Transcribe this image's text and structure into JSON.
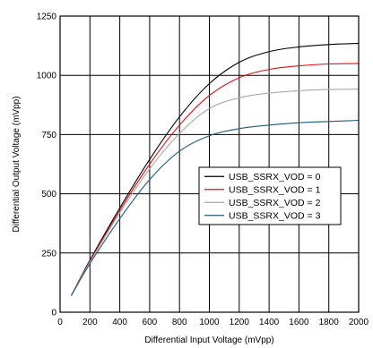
{
  "chart_data": {
    "type": "line",
    "title": "",
    "xlabel": "Differential Input Voltage (mVpp)",
    "ylabel": "Differential Output Voltage (mVpp)",
    "xlim": [
      0,
      2000
    ],
    "ylim": [
      0,
      1250
    ],
    "xticks": [
      0,
      200,
      400,
      600,
      800,
      1000,
      1200,
      1400,
      1600,
      1800,
      2000
    ],
    "yticks": [
      0,
      250,
      500,
      750,
      1000,
      1250
    ],
    "grid": true,
    "legend_position": "center-right",
    "series": [
      {
        "name": "USB_SSRX_VOD = 0",
        "color": "#000000",
        "x": [
          75,
          200,
          400,
          600,
          800,
          1000,
          1200,
          1400,
          1600,
          1800,
          2000
        ],
        "y": [
          70,
          220,
          440,
          645,
          825,
          965,
          1055,
          1100,
          1120,
          1130,
          1135
        ]
      },
      {
        "name": "USB_SSRX_VOD = 1",
        "color": "#e01010",
        "x": [
          75,
          200,
          400,
          600,
          800,
          1000,
          1200,
          1400,
          1600,
          1800,
          2000
        ],
        "y": [
          70,
          215,
          430,
          625,
          790,
          915,
          990,
          1025,
          1040,
          1048,
          1050
        ]
      },
      {
        "name": "USB_SSRX_VOD = 2",
        "color": "#a8a8a8",
        "x": [
          75,
          200,
          400,
          600,
          800,
          1000,
          1200,
          1400,
          1600,
          1800,
          2000
        ],
        "y": [
          70,
          212,
          420,
          605,
          755,
          860,
          905,
          925,
          935,
          940,
          942
        ]
      },
      {
        "name": "USB_SSRX_VOD = 3",
        "color": "#1e5a80",
        "x": [
          75,
          200,
          400,
          600,
          800,
          1000,
          1200,
          1400,
          1600,
          1800,
          2000
        ],
        "y": [
          70,
          205,
          395,
          560,
          680,
          745,
          775,
          790,
          800,
          805,
          810
        ]
      }
    ]
  }
}
